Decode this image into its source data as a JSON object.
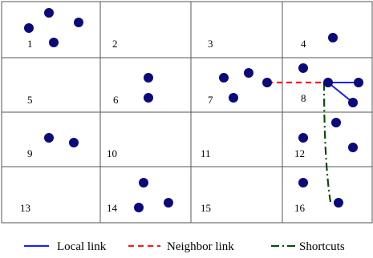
{
  "grid": {
    "rows": 4,
    "cols": 4,
    "line_color": "#555555",
    "cell_labels": [
      "1",
      "2",
      "3",
      "4",
      "5",
      "6",
      "7",
      "8",
      "9",
      "10",
      "11",
      "12",
      "13",
      "14",
      "15",
      "16"
    ]
  },
  "node_color": "#0a0a7a",
  "legend": {
    "local": {
      "label": "Local link",
      "color": "#1a1aff"
    },
    "neighbor": {
      "label": "Neighbor link",
      "color": "#ff1a1a"
    },
    "shortcut": {
      "label": "Shortcuts",
      "color": "#0f4a0f"
    }
  }
}
